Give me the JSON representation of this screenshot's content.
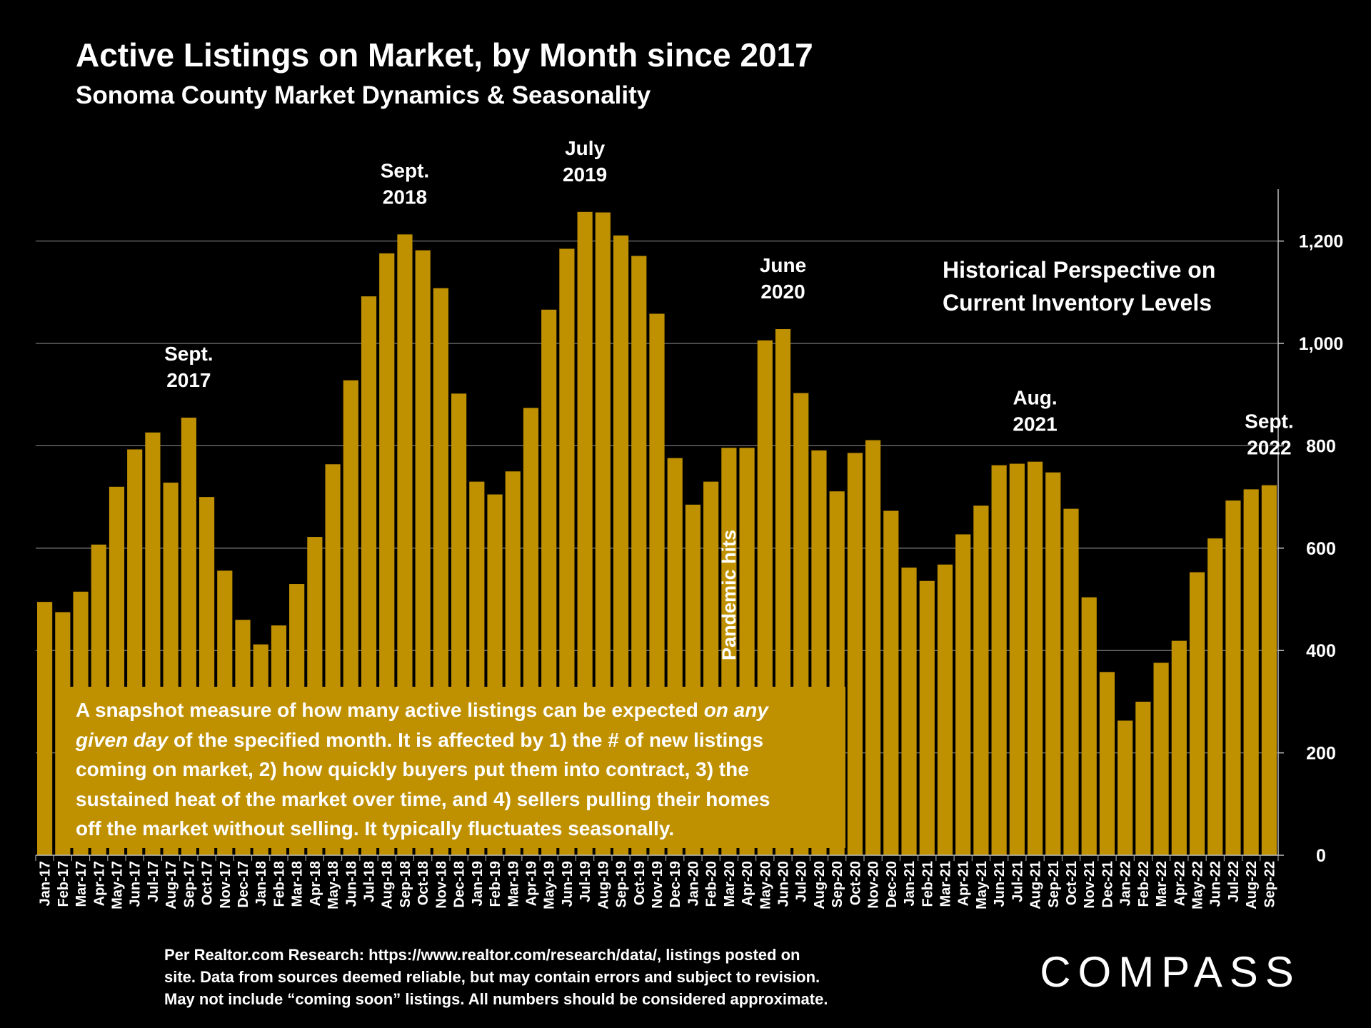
{
  "header": {
    "title": "Active Listings on Market, by Month since 2017",
    "subtitle": "Sonoma County Market Dynamics & Seasonality"
  },
  "note": {
    "line1": "Historical Perspective on",
    "line2": "Current Inventory Levels"
  },
  "description": {
    "l1a": "A snapshot measure of how many active listings can be expected ",
    "l1b": "on any",
    "l2a": "given day",
    "l2b": " of the specified month. It is affected by 1) the # of new listings",
    "l3": "coming on market, 2) how quickly buyers put them into contract, 3) the",
    "l4": "sustained heat of the market over time, and 4) sellers pulling their homes",
    "l5": "off the market without selling. It typically fluctuates seasonally."
  },
  "footnote": {
    "l1": "Per Realtor.com Research:  https://www.realtor.com/research/data/, listings posted on",
    "l2": "site. Data from sources deemed reliable, but may contain errors and subject to revision.",
    "l3": "May not include “coming soon” listings. All numbers should be considered approximate."
  },
  "brand": {
    "logo_text": "COMPASS"
  },
  "colors": {
    "bar": "#BF9000",
    "background": "#000000",
    "text": "#FFFFFF",
    "grid": "#7F7F7F"
  },
  "chart_data": {
    "type": "bar",
    "categories": [
      "Jan-17",
      "Feb-17",
      "Mar-17",
      "Apr-17",
      "May-17",
      "Jun-17",
      "Jul-17",
      "Aug-17",
      "Sep-17",
      "Oct-17",
      "Nov-17",
      "Dec-17",
      "Jan-18",
      "Feb-18",
      "Mar-18",
      "Apr-18",
      "May-18",
      "Jun-18",
      "Jul-18",
      "Aug-18",
      "Sep-18",
      "Oct-18",
      "Nov-18",
      "Dec-18",
      "Jan-19",
      "Feb-19",
      "Mar-19",
      "Apr-19",
      "May-19",
      "Jun-19",
      "Jul-19",
      "Aug-19",
      "Sep-19",
      "Oct-19",
      "Nov-19",
      "Dec-19",
      "Jan-20",
      "Feb-20",
      "Mar-20",
      "Apr-20",
      "May-20",
      "Jun-20",
      "Jul-20",
      "Aug-20",
      "Sep-20",
      "Oct-20",
      "Nov-20",
      "Dec-20",
      "Jan-21",
      "Feb-21",
      "Mar-21",
      "Apr-21",
      "May-21",
      "Jun-21",
      "Jul-21",
      "Aug-21",
      "Sep-21",
      "Oct-21",
      "Nov-21",
      "Dec-21",
      "Jan-22",
      "Feb-22",
      "Mar-22",
      "Apr-22",
      "May-22",
      "Jun-22",
      "Jul-22",
      "Aug-22",
      "Sep-22"
    ],
    "values": [
      495,
      475,
      515,
      607,
      720,
      793,
      826,
      728,
      855,
      700,
      556,
      460,
      412,
      449,
      530,
      622,
      764,
      928,
      1092,
      1176,
      1213,
      1182,
      1108,
      902,
      730,
      705,
      750,
      874,
      1066,
      1185,
      1257,
      1256,
      1211,
      1171,
      1058,
      776,
      685,
      730,
      796,
      796,
      1006,
      1028,
      903,
      791,
      711,
      786,
      811,
      673,
      562,
      536,
      568,
      627,
      683,
      762,
      765,
      769,
      748,
      677,
      504,
      358,
      263,
      300,
      376,
      419,
      553,
      619,
      693,
      715,
      723
    ],
    "ylim": [
      0,
      1300
    ],
    "yticks": [
      0,
      200,
      400,
      600,
      800,
      1000,
      1200
    ],
    "ytick_labels": [
      "0",
      "200",
      "400",
      "600",
      "800",
      "1,000",
      "1,200"
    ],
    "y_axis_side": "right",
    "grid": true,
    "annotations": [
      {
        "index": 8,
        "line1": "Sept.",
        "line2": "2017"
      },
      {
        "index": 20,
        "line1": "Sept.",
        "line2": "2018"
      },
      {
        "index": 30,
        "line1": "July",
        "line2": "2019"
      },
      {
        "index": 41,
        "line1": "June",
        "line2": "2020"
      },
      {
        "index": 55,
        "line1": "Aug.",
        "line2": "2021"
      },
      {
        "index": 68,
        "line1": "Sept.",
        "line2": "2022"
      }
    ],
    "event_label": {
      "index": 38,
      "text": "Pandemic hits"
    }
  }
}
